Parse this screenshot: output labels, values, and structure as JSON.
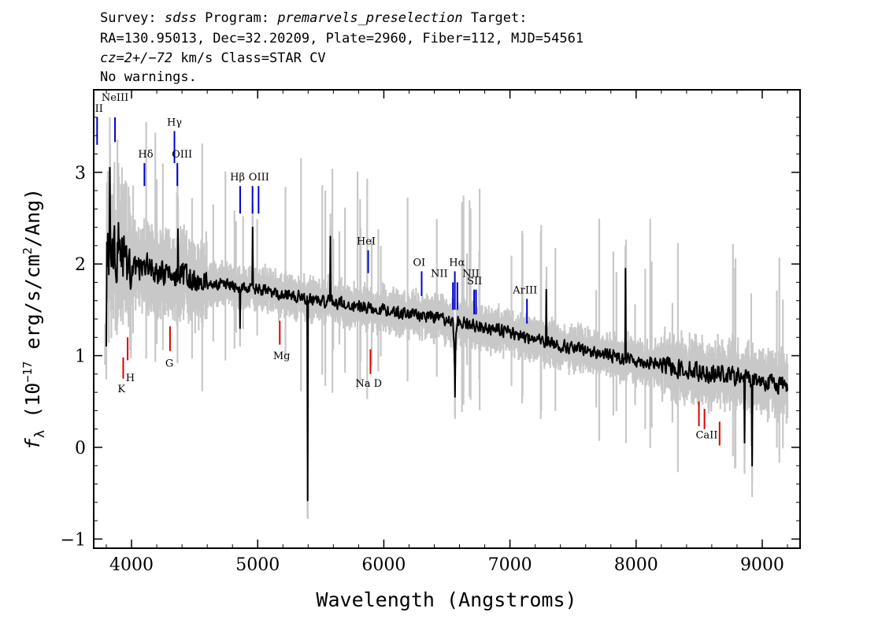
{
  "header": {
    "line1_a": "Survey: ",
    "line1_survey": "sdss",
    "line1_b": " Program: ",
    "line1_program": "premarvels_preselection",
    "line1_c": " Target:",
    "line2": "RA=130.95013, Dec=32.20209, Plate=2960, Fiber=112, MJD=54561",
    "line3_cz": "cz=2+/−72",
    "line3_rest": " km/s Class=STAR CV",
    "line4": "No warnings."
  },
  "chart_data": {
    "type": "line",
    "xlabel": "Wavelength (Angstroms)",
    "ylabel_f": "f",
    "ylabel_sub": "λ",
    "ylabel_pre": " (10",
    "ylabel_exp": "−17",
    "ylabel_mid": " erg/s/cm",
    "ylabel_exp2": "2",
    "ylabel_post": "/Ang)",
    "xlim": [
      3700,
      9300
    ],
    "ylim": [
      -1.1,
      3.9
    ],
    "xticks": [
      {
        "value": 4000,
        "label": "4000"
      },
      {
        "value": 5000,
        "label": "5000"
      },
      {
        "value": 6000,
        "label": "6000"
      },
      {
        "value": 7000,
        "label": "7000"
      },
      {
        "value": 8000,
        "label": "8000"
      },
      {
        "value": 9000,
        "label": "9000"
      }
    ],
    "yticks": [
      {
        "value": -1,
        "label": "−1"
      },
      {
        "value": 0,
        "label": "0"
      },
      {
        "value": 1,
        "label": "1"
      },
      {
        "value": 2,
        "label": "2"
      },
      {
        "value": 3,
        "label": "3"
      }
    ],
    "x_range": [
      3800,
      9200
    ],
    "continuum": [
      [
        3800,
        2.2
      ],
      [
        4000,
        2.0
      ],
      [
        4300,
        1.9
      ],
      [
        4600,
        1.8
      ],
      [
        5000,
        1.72
      ],
      [
        5500,
        1.6
      ],
      [
        6000,
        1.5
      ],
      [
        6500,
        1.4
      ],
      [
        7000,
        1.25
      ],
      [
        7500,
        1.08
      ],
      [
        8000,
        0.95
      ],
      [
        8500,
        0.83
      ],
      [
        9000,
        0.73
      ],
      [
        9200,
        0.68
      ]
    ],
    "features": [
      {
        "x": 5395,
        "y": -0.58,
        "kind": "spike"
      },
      {
        "x": 5577,
        "y": 2.3,
        "kind": "spike"
      },
      {
        "x": 6563,
        "y": 0.55,
        "kind": "spike"
      },
      {
        "x": 3830,
        "y": 3.05,
        "kind": "spike"
      },
      {
        "x": 3895,
        "y": 2.45,
        "kind": "spike"
      },
      {
        "x": 4960,
        "y": 2.4,
        "kind": "spike"
      },
      {
        "x": 4860,
        "y": 1.3,
        "kind": "spike"
      },
      {
        "x": 4369,
        "y": 2.38,
        "kind": "spike"
      },
      {
        "x": 7290,
        "y": 1.72,
        "kind": "spike"
      },
      {
        "x": 7915,
        "y": 1.95,
        "kind": "spike"
      },
      {
        "x": 8920,
        "y": -0.2,
        "kind": "spike"
      },
      {
        "x": 8860,
        "y": 0.05,
        "kind": "spike"
      },
      {
        "x": 3790,
        "y": 1.1,
        "kind": "spike"
      }
    ],
    "emission_lines": [
      {
        "label": "II",
        "x": 3727,
        "y1": 3.3,
        "y2": 3.6,
        "label_x": 3742,
        "label_y": 3.66
      },
      {
        "label": "NeIII",
        "x": 3869,
        "y1": 3.33,
        "y2": 3.6,
        "label_x": 3869,
        "label_y": 3.78
      },
      {
        "label": "Hδ",
        "x": 4102,
        "y1": 2.85,
        "y2": 3.1,
        "label_x": 4112,
        "label_y": 3.16
      },
      {
        "label": "Hγ",
        "x": 4340,
        "y1": 3.1,
        "y2": 3.45,
        "label_x": 4340,
        "label_y": 3.51
      },
      {
        "label": "OIII",
        "x": 4363,
        "y1": 2.85,
        "y2": 3.1,
        "label_x": 4400,
        "label_y": 3.16
      },
      {
        "label": "Hβ",
        "x": 4861,
        "y1": 2.55,
        "y2": 2.85,
        "label_x": 4840,
        "label_y": 2.91
      },
      {
        "label": "OIII",
        "x": 4959,
        "y1": 2.55,
        "y2": 2.85,
        "label_x": 5010,
        "label_y": 2.91
      },
      {
        "label": "OIII",
        "x": 5007,
        "y1": 2.55,
        "y2": 2.85,
        "label_x": 5007,
        "label_y": 2.91,
        "hide_label": true
      },
      {
        "label": "HeI",
        "x": 5876,
        "y1": 1.9,
        "y2": 2.15,
        "label_x": 5860,
        "label_y": 2.21
      },
      {
        "label": "OI",
        "x": 6300,
        "y1": 1.65,
        "y2": 1.92,
        "label_x": 6280,
        "label_y": 1.98
      },
      {
        "label": "NII",
        "x": 6548,
        "y1": 1.5,
        "y2": 1.8,
        "label_x": 6440,
        "label_y": 1.86
      },
      {
        "label": "Hα",
        "x": 6563,
        "y1": 1.5,
        "y2": 1.92,
        "label_x": 6580,
        "label_y": 1.98
      },
      {
        "label": "NII",
        "x": 6583,
        "y1": 1.5,
        "y2": 1.8,
        "label_x": 6690,
        "label_y": 1.86
      },
      {
        "label": "SII",
        "x": 6716,
        "y1": 1.45,
        "y2": 1.72,
        "label_x": 6720,
        "label_y": 1.78
      },
      {
        "label": "SII",
        "x": 6731,
        "y1": 1.45,
        "y2": 1.72,
        "label_x": 6731,
        "label_y": 1.78,
        "hide_label": true
      },
      {
        "label": "ArIII",
        "x": 7135,
        "y1": 1.35,
        "y2": 1.62,
        "label_x": 7120,
        "label_y": 1.68
      }
    ],
    "absorption_lines": [
      {
        "label": "K",
        "x": 3934,
        "y1": 0.75,
        "y2": 0.98,
        "label_x": 3920,
        "label_y": 0.6
      },
      {
        "label": "H",
        "x": 3969,
        "y1": 0.95,
        "y2": 1.2,
        "label_x": 3990,
        "label_y": 0.72
      },
      {
        "label": "G",
        "x": 4305,
        "y1": 1.05,
        "y2": 1.32,
        "label_x": 4300,
        "label_y": 0.88
      },
      {
        "label": "Mg",
        "x": 5175,
        "y1": 1.12,
        "y2": 1.38,
        "label_x": 5190,
        "label_y": 0.96
      },
      {
        "label": "Na D",
        "x": 5894,
        "y1": 0.8,
        "y2": 1.07,
        "label_x": 5880,
        "label_y": 0.66
      },
      {
        "label": "CaII",
        "x": 8498,
        "y1": 0.23,
        "y2": 0.5,
        "label_x": 8560,
        "label_y": 0.1
      },
      {
        "label": "CaII",
        "x": 8542,
        "y1": 0.2,
        "y2": 0.42,
        "label_x": 8542,
        "label_y": 0.1,
        "hide_label": true
      },
      {
        "label": "CaII",
        "x": 8662,
        "y1": 0.02,
        "y2": 0.28,
        "label_x": 8662,
        "label_y": 0.1,
        "hide_label": true
      }
    ],
    "colors": {
      "spectrum": "#000000",
      "error_band": "#c8c8c8",
      "emission": "#0000cc",
      "absorption": "#dd0000"
    }
  }
}
